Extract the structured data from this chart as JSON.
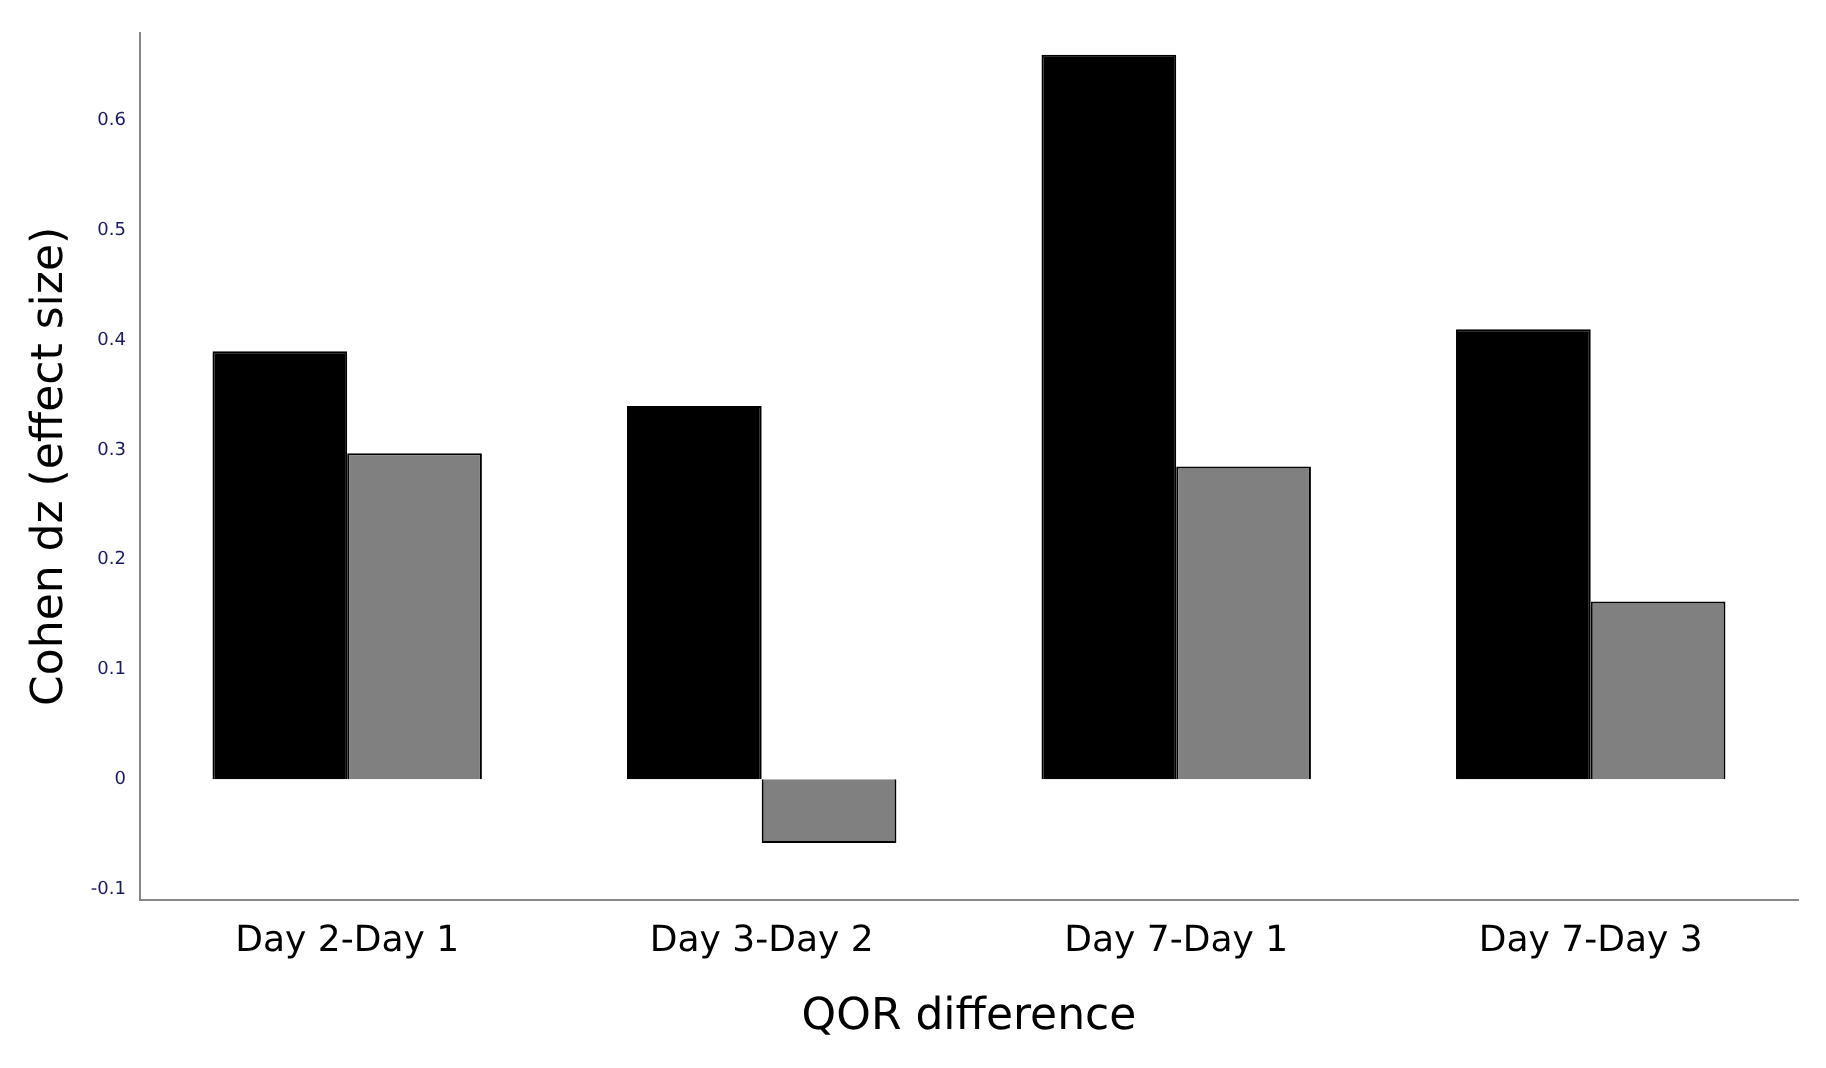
{
  "chart_data": {
    "type": "bar",
    "xlabel": "QOR difference",
    "ylabel": "Cohen dz (effect size)",
    "categories": [
      "Day 2-Day 1",
      "Day 3-Day 2",
      "Day 7-Day 1",
      "Day 7-Day 3"
    ],
    "series": [
      {
        "color": "#000000",
        "values": [
          0.39,
          0.34,
          0.66,
          0.41
        ]
      },
      {
        "color": "#808080",
        "values": [
          0.297,
          -0.058,
          0.285,
          0.162
        ]
      }
    ],
    "ylim": [
      -0.11,
      0.68
    ],
    "yticks": [
      -0.1,
      0,
      0.1,
      0.2,
      0.3,
      0.4,
      0.5,
      0.6
    ],
    "grid": false,
    "legend": false
  }
}
